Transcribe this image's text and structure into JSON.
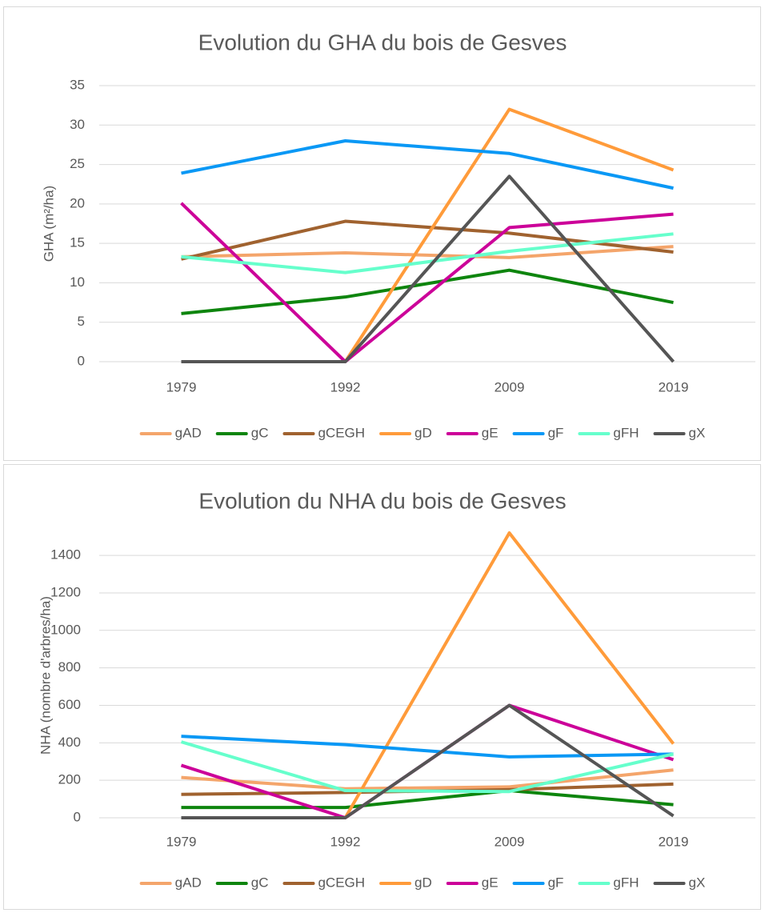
{
  "chart_data": [
    {
      "type": "line",
      "title": "Evolution du GHA du bois de Gesves",
      "y_label": "GHA (m²/ha)",
      "categories": [
        "1979",
        "1992",
        "2009",
        "2019"
      ],
      "ylim": [
        0,
        35
      ],
      "yticks": [
        0,
        5,
        10,
        15,
        20,
        25,
        30,
        35
      ],
      "grid": true,
      "legend": "bottom",
      "series": [
        {
          "name": "gAD",
          "color": "#f4a56b",
          "values": [
            13.3,
            13.8,
            13.2,
            14.6
          ]
        },
        {
          "name": "gC",
          "color": "#0e850e",
          "values": [
            6.1,
            8.2,
            11.6,
            7.5
          ]
        },
        {
          "name": "gCEGH",
          "color": "#a0622f",
          "values": [
            13,
            17.8,
            16.3,
            13.9
          ]
        },
        {
          "name": "gD",
          "color": "#ff9b3a",
          "values": [
            null,
            0,
            32,
            24.3
          ]
        },
        {
          "name": "gE",
          "color": "#cc0099",
          "values": [
            20.1,
            0,
            17,
            18.7
          ]
        },
        {
          "name": "gF",
          "color": "#0a98f5",
          "values": [
            23.9,
            28,
            26.4,
            22
          ]
        },
        {
          "name": "gFH",
          "color": "#66ffcc",
          "values": [
            13.3,
            11.3,
            14,
            16.2
          ]
        },
        {
          "name": "gX",
          "color": "#555555",
          "values": [
            0,
            0,
            23.5,
            0
          ]
        }
      ]
    },
    {
      "type": "line",
      "title": "Evolution du NHA du bois de Gesves",
      "y_label": "NHA (nombre d'arbres/ha)",
      "categories": [
        "1979",
        "1992",
        "2009",
        "2019"
      ],
      "ylim": [
        0,
        1520
      ],
      "yticks": [
        0,
        200,
        400,
        600,
        800,
        1000,
        1200,
        1400
      ],
      "grid": true,
      "legend": "bottom",
      "series": [
        {
          "name": "gAD",
          "color": "#f4a56b",
          "values": [
            215,
            155,
            165,
            255
          ]
        },
        {
          "name": "gC",
          "color": "#0e850e",
          "values": [
            55,
            55,
            145,
            70
          ]
        },
        {
          "name": "gCEGH",
          "color": "#a0622f",
          "values": [
            125,
            135,
            150,
            180
          ]
        },
        {
          "name": "gD",
          "color": "#ff9b3a",
          "values": [
            null,
            0,
            1520,
            395
          ]
        },
        {
          "name": "gE",
          "color": "#cc0099",
          "values": [
            280,
            0,
            600,
            310
          ]
        },
        {
          "name": "gF",
          "color": "#0a98f5",
          "values": [
            435,
            390,
            325,
            340
          ]
        },
        {
          "name": "gFH",
          "color": "#66ffcc",
          "values": [
            405,
            145,
            140,
            340
          ]
        },
        {
          "name": "gX",
          "color": "#555555",
          "values": [
            0,
            0,
            600,
            10
          ]
        }
      ]
    }
  ]
}
